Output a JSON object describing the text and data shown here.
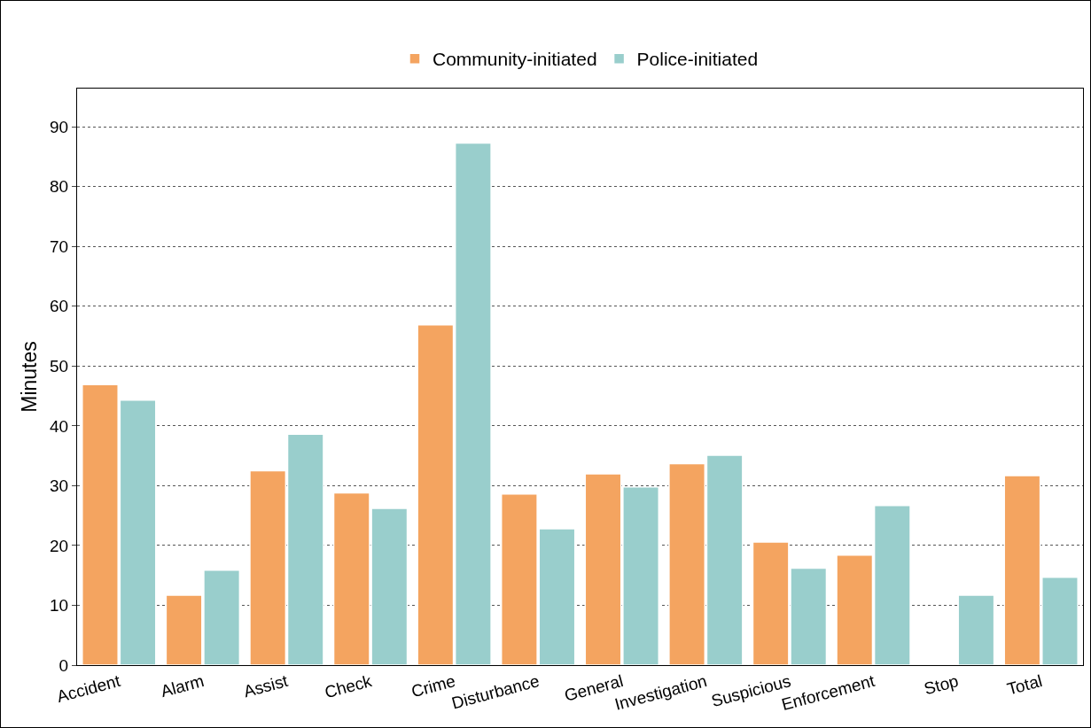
{
  "chart_data": {
    "type": "bar",
    "ylabel": "Minutes",
    "categories": [
      "Accident",
      "Alarm",
      "Assist",
      "Check",
      "Crime",
      "Disturbance",
      "General",
      "Investigation",
      "Suspicious",
      "Enforcement",
      "Stop",
      "Total"
    ],
    "series": [
      {
        "name": "Community-initiated",
        "color": "#f4a460",
        "values": [
          46.9,
          11.7,
          32.5,
          28.8,
          56.9,
          28.6,
          32.0,
          33.7,
          20.6,
          18.4,
          null,
          31.7
        ]
      },
      {
        "name": "Police-initiated",
        "color": "#99cecc",
        "values": [
          44.3,
          15.9,
          38.6,
          26.2,
          87.3,
          22.8,
          29.8,
          35.1,
          16.2,
          26.7,
          11.7,
          14.7
        ]
      }
    ],
    "ylim": [
      0,
      96.4
    ],
    "yticks": [
      0,
      10,
      20,
      30,
      40,
      50,
      60,
      70,
      80,
      90
    ],
    "grid": "y",
    "legend": "top"
  }
}
